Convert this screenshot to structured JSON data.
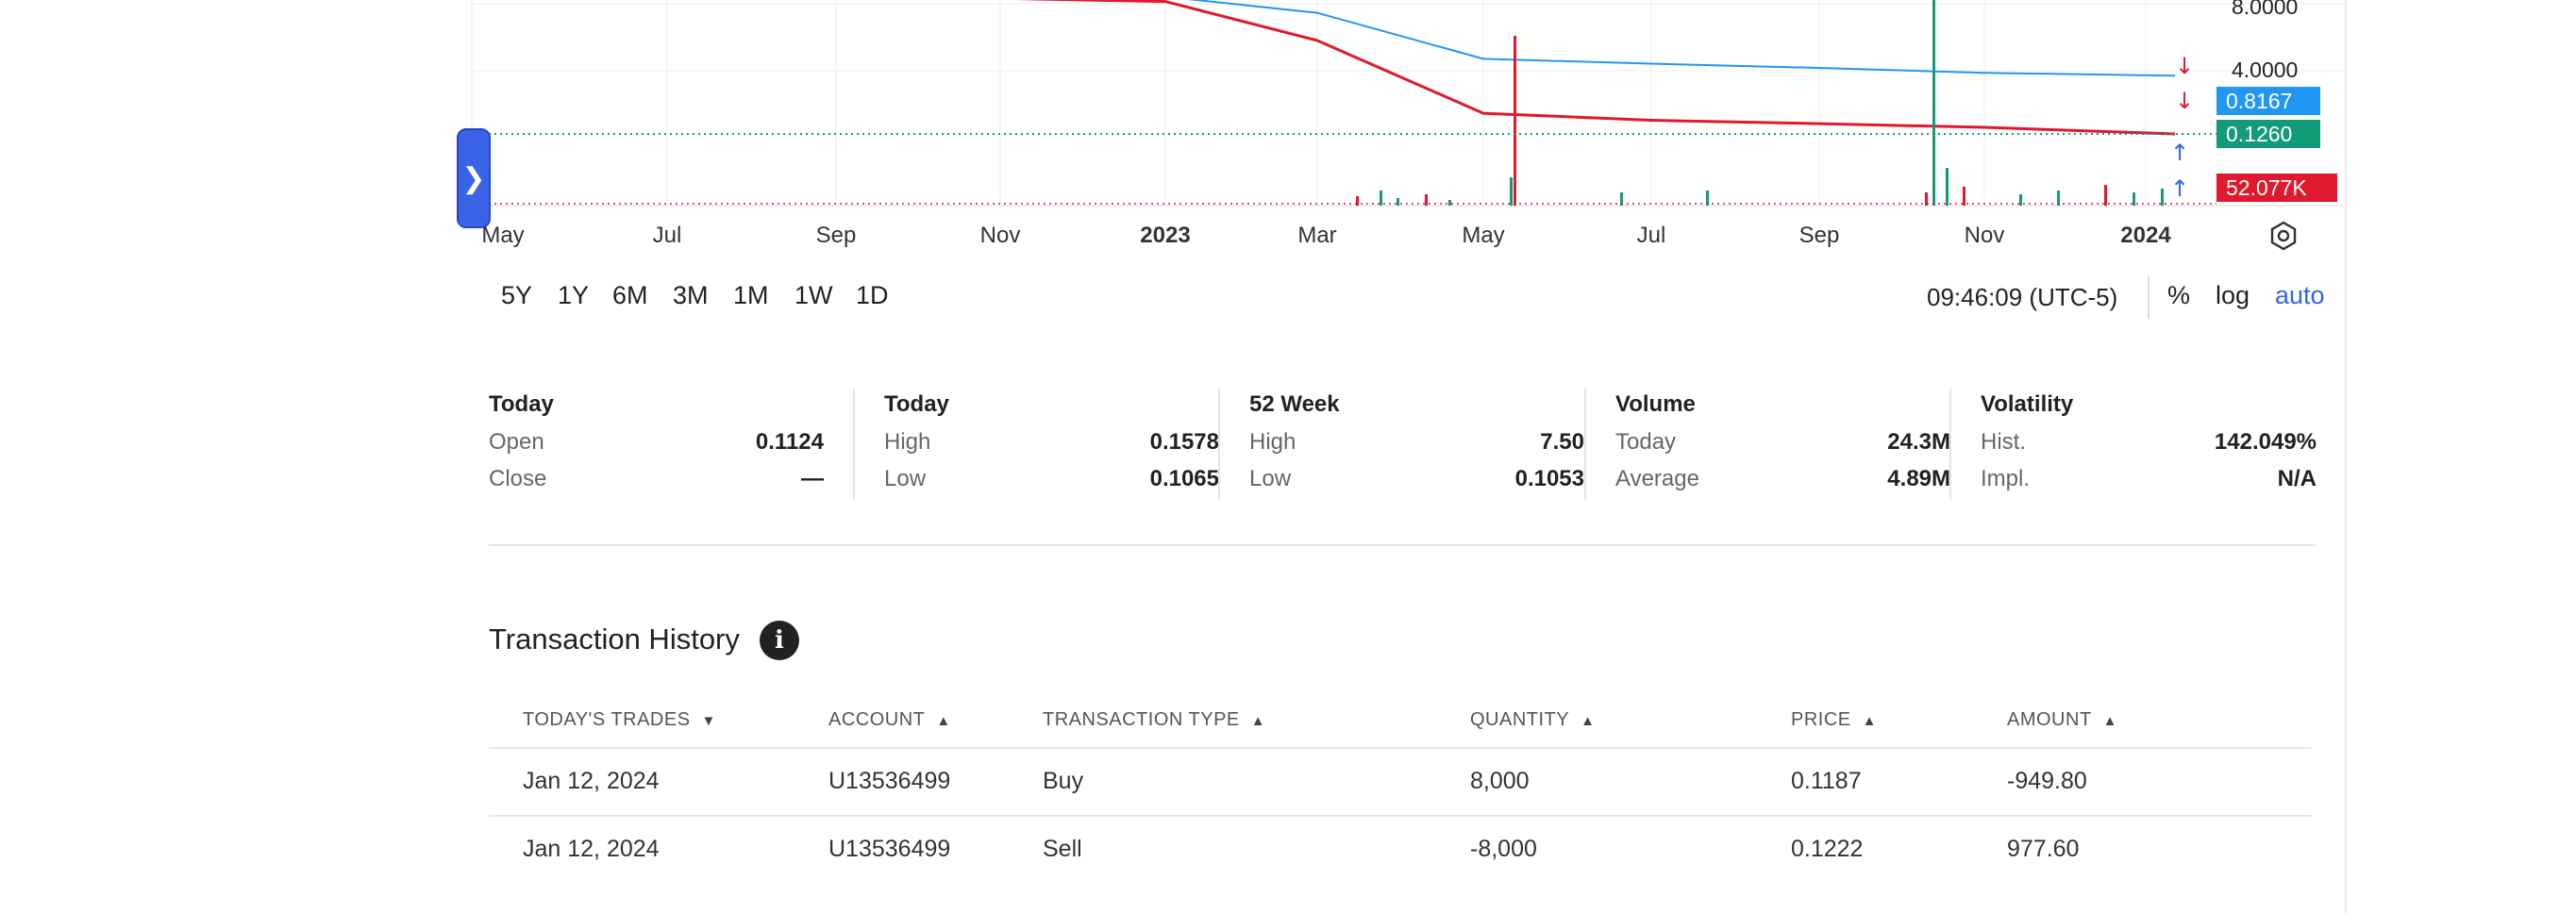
{
  "chart": {
    "price_tags": [
      {
        "value": "0.8167",
        "color": "#2196f3"
      },
      {
        "value": "0.1260",
        "color": "#129b78"
      },
      {
        "value": "52.077K",
        "color": "#e0192e"
      }
    ],
    "scale_labels": [
      "8.0000",
      "4.0000"
    ],
    "x_ticks": [
      {
        "label": "May",
        "bold": false
      },
      {
        "label": "Jul",
        "bold": false
      },
      {
        "label": "Sep",
        "bold": false
      },
      {
        "label": "Nov",
        "bold": false
      },
      {
        "label": "2023",
        "bold": true
      },
      {
        "label": "Mar",
        "bold": false
      },
      {
        "label": "May",
        "bold": false
      },
      {
        "label": "Jul",
        "bold": false
      },
      {
        "label": "Sep",
        "bold": false
      },
      {
        "label": "Nov",
        "bold": false
      },
      {
        "label": "2024",
        "bold": true
      }
    ],
    "colors": {
      "price_line": "#2196f3",
      "up": "#129b78",
      "down": "#e0192e",
      "grid": "#ececec",
      "accent": "#3565e0"
    },
    "toggle_icon": "chevron-right-icon",
    "settings_icon": "settings-hexagon-icon"
  },
  "chart_data": {
    "type": "line",
    "title": "",
    "x": [
      "May",
      "Jul",
      "Sep",
      "Nov",
      "2023",
      "Mar",
      "May",
      "Jul",
      "Sep",
      "Nov",
      "2024"
    ],
    "series": [
      {
        "values": [
          null,
          null,
          null,
          9.5,
          8.6,
          2.5,
          0.25,
          0.2,
          0.18,
          0.16,
          0.13
        ]
      },
      {
        "values": [
          null,
          null,
          null,
          null,
          10.0,
          6.0,
          1.4,
          1.2,
          1.05,
          0.9,
          0.82
        ]
      }
    ],
    "ylabel": "",
    "y_ticks": [
      "8.0000",
      "4.0000"
    ],
    "grid": true
  },
  "controls": {
    "ranges": [
      "5Y",
      "1Y",
      "6M",
      "3M",
      "1M",
      "1W",
      "1D"
    ],
    "timestamp": "09:46:09 (UTC-5)",
    "options": [
      "%",
      "log",
      "auto"
    ]
  },
  "stats": [
    {
      "title": "Today",
      "rows": [
        {
          "label": "Open",
          "value": "0.1124"
        },
        {
          "label": "Close",
          "value": "—"
        }
      ]
    },
    {
      "title": "Today",
      "rows": [
        {
          "label": "High",
          "value": "0.1578"
        },
        {
          "label": "Low",
          "value": "0.1065"
        }
      ]
    },
    {
      "title": "52 Week",
      "rows": [
        {
          "label": "High",
          "value": "7.50"
        },
        {
          "label": "Low",
          "value": "0.1053"
        }
      ]
    },
    {
      "title": "Volume",
      "rows": [
        {
          "label": "Today",
          "value": "24.3M"
        },
        {
          "label": "Average",
          "value": "4.89M"
        }
      ]
    },
    {
      "title": "Volatility",
      "rows": [
        {
          "label": "Hist.",
          "value": "142.049%"
        },
        {
          "label": "Impl.",
          "value": "N/A"
        }
      ]
    }
  ],
  "transactions": {
    "title": "Transaction History",
    "info_icon": "info-icon",
    "columns": [
      {
        "label": "TODAY'S TRADES",
        "sort": "desc"
      },
      {
        "label": "ACCOUNT",
        "sort": "asc"
      },
      {
        "label": "TRANSACTION TYPE",
        "sort": "asc"
      },
      {
        "label": "QUANTITY",
        "sort": "asc"
      },
      {
        "label": "PRICE",
        "sort": "asc"
      },
      {
        "label": "AMOUNT",
        "sort": "asc"
      }
    ],
    "rows": [
      [
        "Jan 12, 2024",
        "U13536499",
        "Buy",
        "8,000",
        "0.1187",
        "-949.80"
      ],
      [
        "Jan 12, 2024",
        "U13536499",
        "Sell",
        "-8,000",
        "0.1222",
        "977.60"
      ]
    ]
  }
}
